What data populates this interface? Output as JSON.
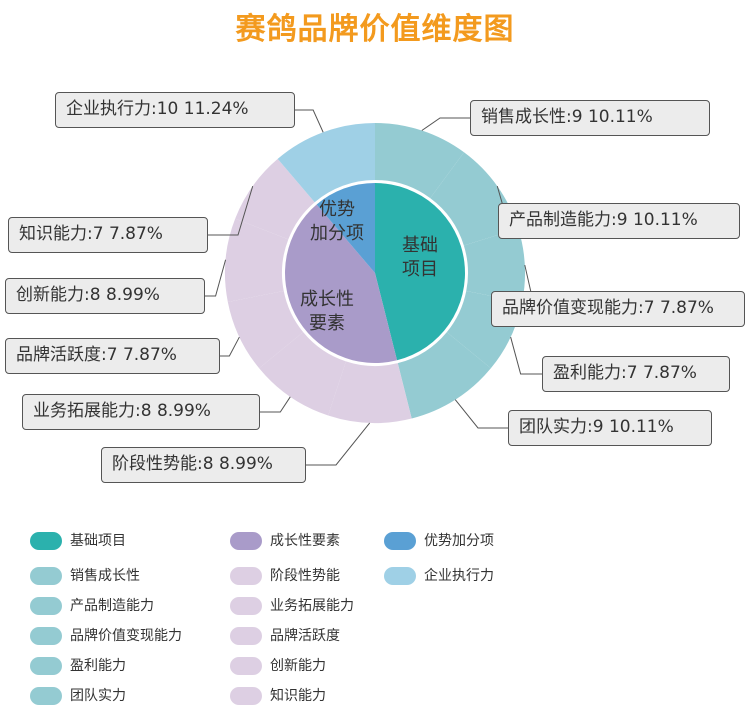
{
  "chart_data": {
    "type": "pie",
    "title": "赛鸽品牌价值维度图",
    "inner_ring": [
      {
        "name": "基础项目",
        "label": "基础\n项目",
        "value": 41,
        "color": "#2bb1ad"
      },
      {
        "name": "成长性要素",
        "label": "成长性\n要素",
        "value": 38,
        "color": "#a99bc9"
      },
      {
        "name": "优势加分项",
        "label": "优势\n加分项",
        "value": 10,
        "color": "#5aa0d4"
      }
    ],
    "outer_ring": [
      {
        "name": "销售成长性",
        "value": 9,
        "percent": "10.11%",
        "group": "基础项目",
        "color": "#94cbd2",
        "callout": "销售成长性:9   10.11%"
      },
      {
        "name": "产品制造能力",
        "value": 9,
        "percent": "10.11%",
        "group": "基础项目",
        "color": "#94cbd2",
        "callout": "产品制造能力:9   10.11%"
      },
      {
        "name": "品牌价值变现能力",
        "value": 7,
        "percent": "7.87%",
        "group": "基础项目",
        "color": "#94cbd2",
        "callout": "品牌价值变现能力:7   7.87%"
      },
      {
        "name": "盈利能力",
        "value": 7,
        "percent": "7.87%",
        "group": "基础项目",
        "color": "#94cbd2",
        "callout": "盈利能力:7   7.87%"
      },
      {
        "name": "团队实力",
        "value": 9,
        "percent": "10.11%",
        "group": "基础项目",
        "color": "#94cbd2",
        "callout": "团队实力:9   10.11%"
      },
      {
        "name": "阶段性势能",
        "value": 8,
        "percent": "8.99%",
        "group": "成长性要素",
        "color": "#ddcfe3",
        "callout": "阶段性势能:8   8.99%"
      },
      {
        "name": "业务拓展能力",
        "value": 8,
        "percent": "8.99%",
        "group": "成长性要素",
        "color": "#ddcfe3",
        "callout": "业务拓展能力:8   8.99%"
      },
      {
        "name": "品牌活跃度",
        "value": 7,
        "percent": "7.87%",
        "group": "成长性要素",
        "color": "#ddcfe3",
        "callout": "品牌活跃度:7   7.87%"
      },
      {
        "name": "创新能力",
        "value": 8,
        "percent": "8.99%",
        "group": "成长性要素",
        "color": "#ddcfe3",
        "callout": "创新能力:8   8.99%"
      },
      {
        "name": "知识能力",
        "value": 7,
        "percent": "7.87%",
        "group": "成长性要素",
        "color": "#ddcfe3",
        "callout": "知识能力:7   7.87%"
      },
      {
        "name": "企业执行力",
        "value": 10,
        "percent": "11.24%",
        "group": "优势加分项",
        "color": "#9fd0e6",
        "callout": "企业执行力:10   11.24%"
      }
    ],
    "legend": [
      {
        "label": "基础项目",
        "color": "#2bb1ad"
      },
      {
        "label": "成长性要素",
        "color": "#a99bc9"
      },
      {
        "label": "优势加分项",
        "color": "#5aa0d4"
      },
      {
        "label": "销售成长性",
        "color": "#94cbd2"
      },
      {
        "label": "阶段性势能",
        "color": "#ddcfe3"
      },
      {
        "label": "企业执行力",
        "color": "#9fd0e6"
      },
      {
        "label": "产品制造能力",
        "color": "#94cbd2"
      },
      {
        "label": "业务拓展能力",
        "color": "#ddcfe3"
      },
      {
        "label": "品牌价值变现能力",
        "color": "#94cbd2"
      },
      {
        "label": "品牌活跃度",
        "color": "#ddcfe3"
      },
      {
        "label": "盈利能力",
        "color": "#94cbd2"
      },
      {
        "label": "创新能力",
        "color": "#ddcfe3"
      },
      {
        "label": "团队实力",
        "color": "#94cbd2"
      },
      {
        "label": "知识能力",
        "color": "#ddcfe3"
      }
    ]
  }
}
